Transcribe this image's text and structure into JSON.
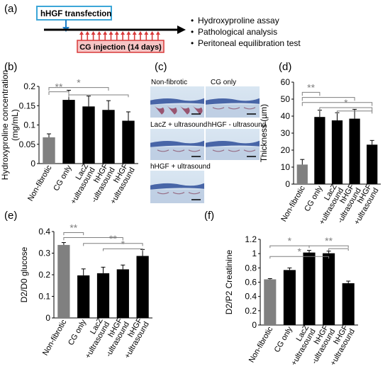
{
  "panel_labels": {
    "a": "(a)",
    "b": "(b)",
    "c": "(c)",
    "d": "(d)",
    "e": "(e)",
    "f": "(f)"
  },
  "timeline": {
    "transfection_label": "hHGF transfection",
    "injection_label": "CG injection (14 days)",
    "bullets": [
      "Hydroxyproline assay",
      "Pathological analysis",
      "Peritoneal equilibration test"
    ],
    "colors": {
      "transfection_border": "#3ca6d8",
      "injection_border": "#d83a3a",
      "injection_fill": "#f6c5c5",
      "arrow": "#d83a3a",
      "pin": "#1e7fc8"
    }
  },
  "histology": {
    "labels": [
      "Non-fibrotic",
      "CG only",
      "LacZ + ultrasound",
      "hHGF - ultrasound",
      "hHGF + ultrasound"
    ]
  },
  "significance_mark": "*",
  "significance_mark_double": "**",
  "chart_data": [
    {
      "id": "b",
      "type": "bar",
      "categories": [
        "Non-fibrotic",
        "CG only",
        "LacZ +ultrasound",
        "hHGF -ultrasound",
        "hHGF +ultrasound"
      ],
      "values": [
        0.068,
        0.165,
        0.148,
        0.139,
        0.111
      ],
      "errors": [
        0.009,
        0.025,
        0.027,
        0.024,
        0.023
      ],
      "colors": [
        "#808080",
        "#000000",
        "#000000",
        "#000000",
        "#000000"
      ],
      "ylabel": "Hydroxyproline concentration (mg/mL)",
      "ylim": [
        0,
        0.2
      ],
      "yticks": [
        "0",
        "0.05",
        "0.1",
        "0.15",
        "0.2"
      ]
    },
    {
      "id": "d",
      "type": "bar",
      "categories": [
        "Non-fibrotic",
        "CG only",
        "LacZ +ultrasound",
        "hHGF -ultrasound",
        "hHGF +ultrasound"
      ],
      "values": [
        11.5,
        39.5,
        37.5,
        38.5,
        23.2
      ],
      "errors": [
        3,
        4,
        4.5,
        5.5,
        2.5
      ],
      "colors": [
        "#808080",
        "#000000",
        "#000000",
        "#000000",
        "#000000"
      ],
      "ylabel": "Thickness (µm)",
      "ylim": [
        0,
        60
      ],
      "yticks": [
        "0",
        "10",
        "20",
        "30",
        "40",
        "50",
        "60"
      ]
    },
    {
      "id": "e",
      "type": "bar",
      "categories": [
        "Non-fibrotic",
        "CG only",
        "LacZ +ultrasound",
        "hHGF -ultrasound",
        "hHGF +ultrasound"
      ],
      "values": [
        0.338,
        0.197,
        0.207,
        0.225,
        0.287
      ],
      "errors": [
        0.011,
        0.03,
        0.028,
        0.02,
        0.03
      ],
      "colors": [
        "#808080",
        "#000000",
        "#000000",
        "#000000",
        "#000000"
      ],
      "ylabel": "D2/D0 glucose",
      "ylim": [
        0,
        0.4
      ],
      "yticks": [
        "0",
        "0.1",
        "0.2",
        "0.3",
        "0.4"
      ]
    },
    {
      "id": "f",
      "type": "bar",
      "categories": [
        "Non-fibrotic",
        "CG only",
        "LacZ +ultrasound",
        "hHGF -ultrasound",
        "hHGF +ultrasound"
      ],
      "values": [
        0.64,
        0.77,
        1.015,
        1.005,
        0.585
      ],
      "errors": [
        0.01,
        0.03,
        0.03,
        0.03,
        0.03
      ],
      "colors": [
        "#808080",
        "#000000",
        "#000000",
        "#000000",
        "#000000"
      ],
      "ylabel": "D2/P2 Creatinine",
      "ylim": [
        0,
        1.2
      ],
      "yticks": [
        "0",
        "0.2",
        "0.4",
        "0.6",
        "0.8",
        "1",
        "1.2"
      ]
    }
  ]
}
